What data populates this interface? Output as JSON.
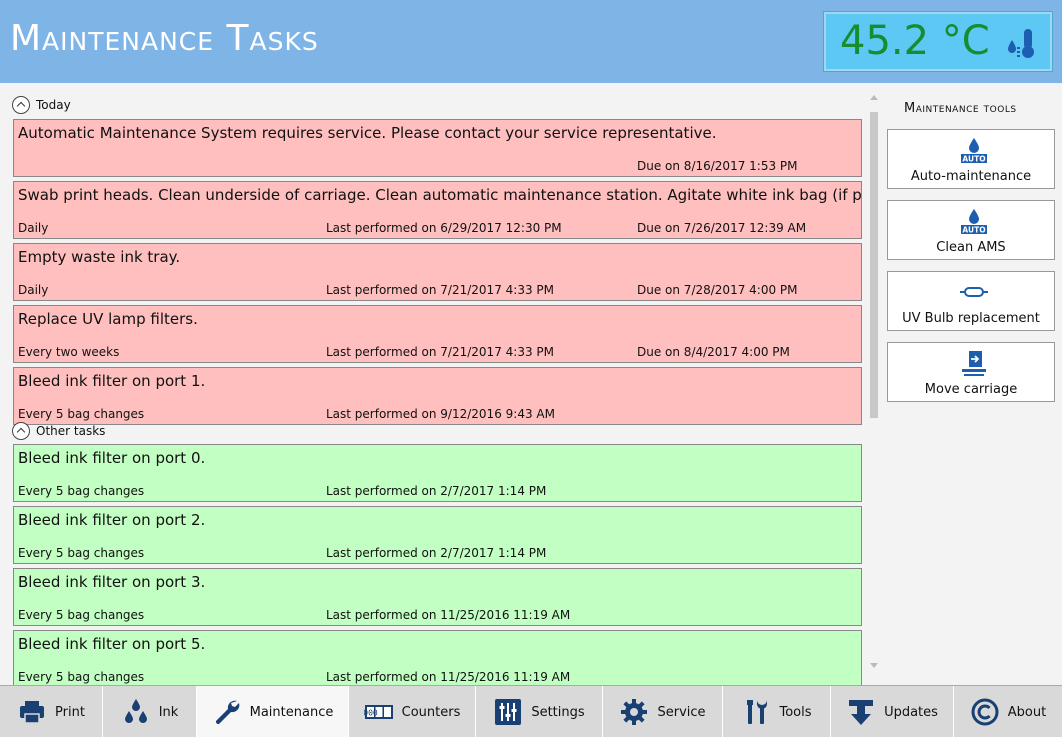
{
  "header": {
    "title": "Maintenance Tasks",
    "temperature": "45.2 °C",
    "temperature_icon": "thermometer-ink-icon"
  },
  "sections": {
    "today": {
      "label": "Today"
    },
    "other": {
      "label": "Other tasks"
    }
  },
  "today_tasks": [
    {
      "text": "Automatic Maintenance System requires service. Please contact your service representative.",
      "frequency": "",
      "last": "",
      "due": "Due on 8/16/2017 1:53 PM"
    },
    {
      "text": "Swab print heads. Clean underside of carriage. Clean automatic maintenance station. Agitate white ink bag (if present)",
      "frequency": "Daily",
      "last": "Last performed on 6/29/2017 12:30 PM",
      "due": "Due on 7/26/2017 12:39 AM"
    },
    {
      "text": "Empty waste ink tray.",
      "frequency": "Daily",
      "last": "Last performed on 7/21/2017 4:33 PM",
      "due": "Due on 7/28/2017 4:00 PM"
    },
    {
      "text": "Replace UV lamp filters.",
      "frequency": "Every two weeks",
      "last": "Last performed on 7/21/2017 4:33 PM",
      "due": "Due on 8/4/2017 4:00 PM"
    },
    {
      "text": "Bleed ink filter on port 1.",
      "frequency": "Every 5 bag changes",
      "last": "Last performed on 9/12/2016 9:43 AM",
      "due": ""
    }
  ],
  "other_tasks": [
    {
      "text": "Bleed ink filter on port 0.",
      "frequency": "Every 5 bag changes",
      "last": "Last performed on 2/7/2017 1:14 PM",
      "due": ""
    },
    {
      "text": "Bleed ink filter on port 2.",
      "frequency": "Every 5 bag changes",
      "last": "Last performed on 2/7/2017 1:14 PM",
      "due": ""
    },
    {
      "text": "Bleed ink filter on port 3.",
      "frequency": "Every 5 bag changes",
      "last": "Last performed on 11/25/2016 11:19 AM",
      "due": ""
    },
    {
      "text": "Bleed ink filter on port 5.",
      "frequency": "Every 5 bag changes",
      "last": "Last performed on 11/25/2016 11:19 AM",
      "due": ""
    }
  ],
  "tools": {
    "title": "Maintenance tools",
    "buttons": [
      {
        "label": "Auto-maintenance",
        "icon": "auto-ink-drop-icon"
      },
      {
        "label": "Clean AMS",
        "icon": "auto-ink-drop-icon"
      },
      {
        "label": "UV Bulb replacement",
        "icon": "uv-bulb-icon"
      },
      {
        "label": "Move carriage",
        "icon": "move-carriage-icon"
      }
    ]
  },
  "nav": [
    {
      "label": "Print",
      "icon": "printer-icon"
    },
    {
      "label": "Ink",
      "icon": "ink-drops-icon"
    },
    {
      "label": "Maintenance",
      "icon": "wrench-icon",
      "active": true
    },
    {
      "label": "Counters",
      "icon": "counter-icon",
      "digits": "000"
    },
    {
      "label": "Settings",
      "icon": "sliders-icon"
    },
    {
      "label": "Service",
      "icon": "gear-icon"
    },
    {
      "label": "Tools",
      "icon": "tools-icon"
    },
    {
      "label": "Updates",
      "icon": "download-icon"
    },
    {
      "label": "About",
      "icon": "copyright-icon"
    }
  ],
  "colors": {
    "header": "#7fb4e6",
    "overdue": "#ffbfbf",
    "ok": "#c2ffc2",
    "temperature_text": "#168d2e",
    "temperature_box": "#5cc8f3",
    "icon_blue": "#1c5fb0"
  }
}
